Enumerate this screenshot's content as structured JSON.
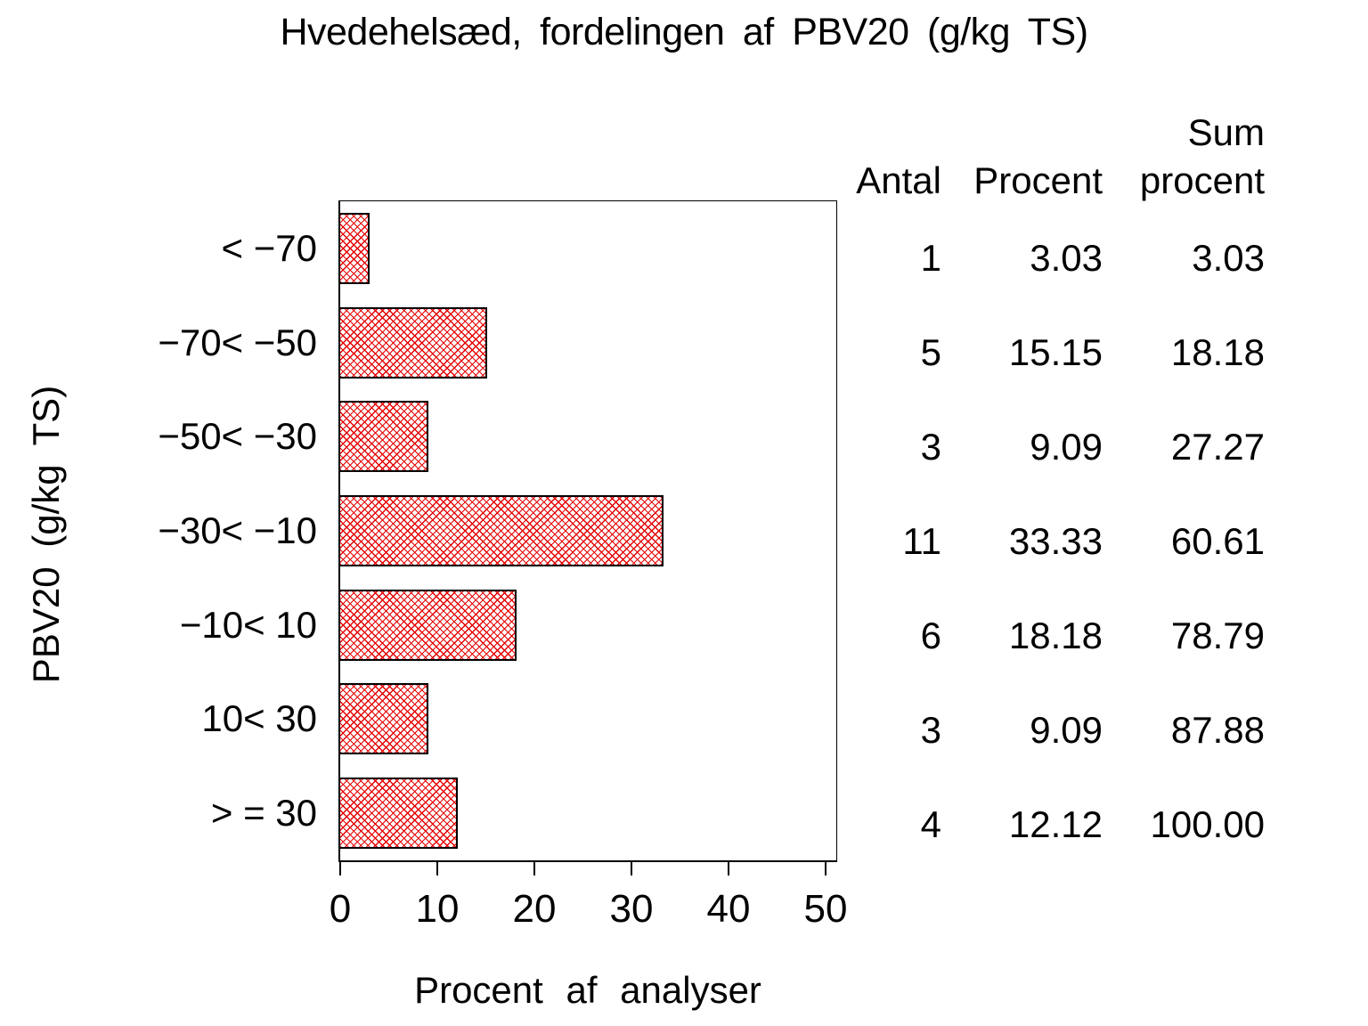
{
  "title": "Hvedehelsæd, fordelingen af PBV20 (g/kg TS)",
  "colors": {
    "bar_hatch": "#e60000",
    "bar_border": "#000000",
    "axis": "#000000",
    "text": "#000000",
    "background": "#ffffff"
  },
  "chart_data": {
    "type": "bar",
    "orientation": "horizontal",
    "title": "Hvedehelsæd, fordelingen af PBV20 (g/kg TS)",
    "categories": [
      "< −70",
      "−70< −50",
      "−50< −30",
      "−30< −10",
      "−10< 10",
      "10< 30",
      "> = 30"
    ],
    "values": [
      3.03,
      15.15,
      9.09,
      33.33,
      18.18,
      9.09,
      12.12
    ],
    "series": [
      {
        "name": "Antal",
        "values": [
          1,
          5,
          3,
          11,
          6,
          3,
          4
        ]
      },
      {
        "name": "Procent",
        "values": [
          3.03,
          15.15,
          9.09,
          33.33,
          18.18,
          9.09,
          12.12
        ]
      },
      {
        "name": "Sum procent",
        "values": [
          3.03,
          18.18,
          27.27,
          60.61,
          78.79,
          87.88,
          100.0
        ]
      }
    ],
    "xlabel": "Procent af analyser",
    "ylabel": "PBV20 (g/kg TS)",
    "xlim": [
      0,
      51
    ],
    "x_ticks": [
      0,
      10,
      20,
      30,
      40,
      50
    ],
    "grid": false,
    "legend": "none",
    "bar_pattern": "red diagonal crosshatch, black outline"
  },
  "table": {
    "headers": [
      "Antal",
      "Procent",
      "Sum\nprocent"
    ],
    "rows": [
      [
        "1",
        "3.03",
        "3.03"
      ],
      [
        "5",
        "15.15",
        "18.18"
      ],
      [
        "3",
        "9.09",
        "27.27"
      ],
      [
        "11",
        "33.33",
        "60.61"
      ],
      [
        "6",
        "18.18",
        "78.79"
      ],
      [
        "3",
        "9.09",
        "87.88"
      ],
      [
        "4",
        "12.12",
        "100.00"
      ]
    ]
  }
}
